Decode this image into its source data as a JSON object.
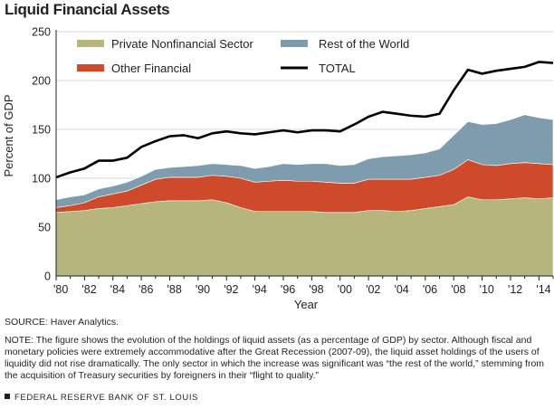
{
  "title": "Liquid Financial Assets",
  "source": "SOURCE: Haver Analytics.",
  "note": "NOTE: The figure shows the evolution of the holdings of liquid assets (as a percentage of GDP) by sector. Although fiscal and monetary policies were extremely accommodative after the Great Recession (2007-09), the liquid asset holdings of the users of liquidity did not rise dramatically. The only sector in which the increase was significant was “the rest of the world,” stemming from the acquisition of Treasury securities by foreigners in their “flight to quality.”",
  "footer": "FEDERAL RESERVE BANK OF ST. LOUIS",
  "chart_data": {
    "type": "area",
    "stacked": true,
    "xlabel": "Year",
    "ylabel": "Percent of GDP",
    "ylim": [
      0,
      250
    ],
    "xlim": [
      1980,
      2015
    ],
    "yticks": [
      0,
      50,
      100,
      150,
      200,
      250
    ],
    "xticks": [
      1980,
      1982,
      1984,
      1986,
      1988,
      1990,
      1992,
      1994,
      1996,
      1998,
      2000,
      2002,
      2004,
      2006,
      2008,
      2010,
      2012,
      2014
    ],
    "xtick_labels": [
      "'80",
      "'82",
      "'84",
      "'86",
      "'88",
      "'90",
      "'92",
      "'94",
      "'96",
      "'98",
      "'00",
      "'02",
      "'04",
      "'06",
      "'08",
      "'10",
      "'12",
      "'14"
    ],
    "grid": true,
    "legend_position": "top",
    "x": [
      1980,
      1981,
      1982,
      1983,
      1984,
      1985,
      1986,
      1987,
      1988,
      1989,
      1990,
      1991,
      1992,
      1993,
      1994,
      1995,
      1996,
      1997,
      1998,
      1999,
      2000,
      2001,
      2002,
      2003,
      2004,
      2005,
      2006,
      2007,
      2008,
      2009,
      2010,
      2011,
      2012,
      2013,
      2014,
      2015
    ],
    "series": [
      {
        "name": "Private Nonfinancial Sector",
        "color": "#b5b57c",
        "values": [
          65,
          66,
          67,
          69,
          70,
          72,
          74,
          76,
          77,
          77,
          77,
          78,
          75,
          70,
          66,
          66,
          66,
          66,
          66,
          65,
          65,
          65,
          67,
          67,
          66,
          67,
          69,
          71,
          73,
          81,
          78,
          78,
          79,
          80,
          79,
          80
        ]
      },
      {
        "name": "Other Financial",
        "color": "#cf4a2a",
        "values": [
          5,
          6,
          8,
          12,
          14,
          15,
          19,
          23,
          24,
          24,
          24,
          25,
          27,
          30,
          30,
          31,
          32,
          31,
          31,
          31,
          30,
          30,
          32,
          32,
          33,
          32,
          32,
          32,
          36,
          38,
          36,
          35,
          36,
          36,
          36,
          34
        ]
      },
      {
        "name": "Rest of the World",
        "color": "#7f9caf",
        "values": [
          8,
          9,
          8,
          8,
          8,
          9,
          9,
          10,
          10,
          11,
          12,
          12,
          12,
          13,
          14,
          15,
          17,
          17,
          18,
          19,
          18,
          19,
          21,
          23,
          24,
          25,
          25,
          27,
          35,
          39,
          41,
          43,
          45,
          49,
          47,
          46
        ]
      }
    ],
    "total": {
      "name": "TOTAL",
      "color": "#000000",
      "values": [
        101,
        106,
        110,
        118,
        118,
        121,
        132,
        138,
        143,
        144,
        141,
        146,
        148,
        146,
        145,
        147,
        149,
        147,
        149,
        149,
        148,
        155,
        163,
        168,
        166,
        164,
        163,
        166,
        190,
        211,
        207,
        210,
        212,
        214,
        219,
        218
      ]
    }
  }
}
